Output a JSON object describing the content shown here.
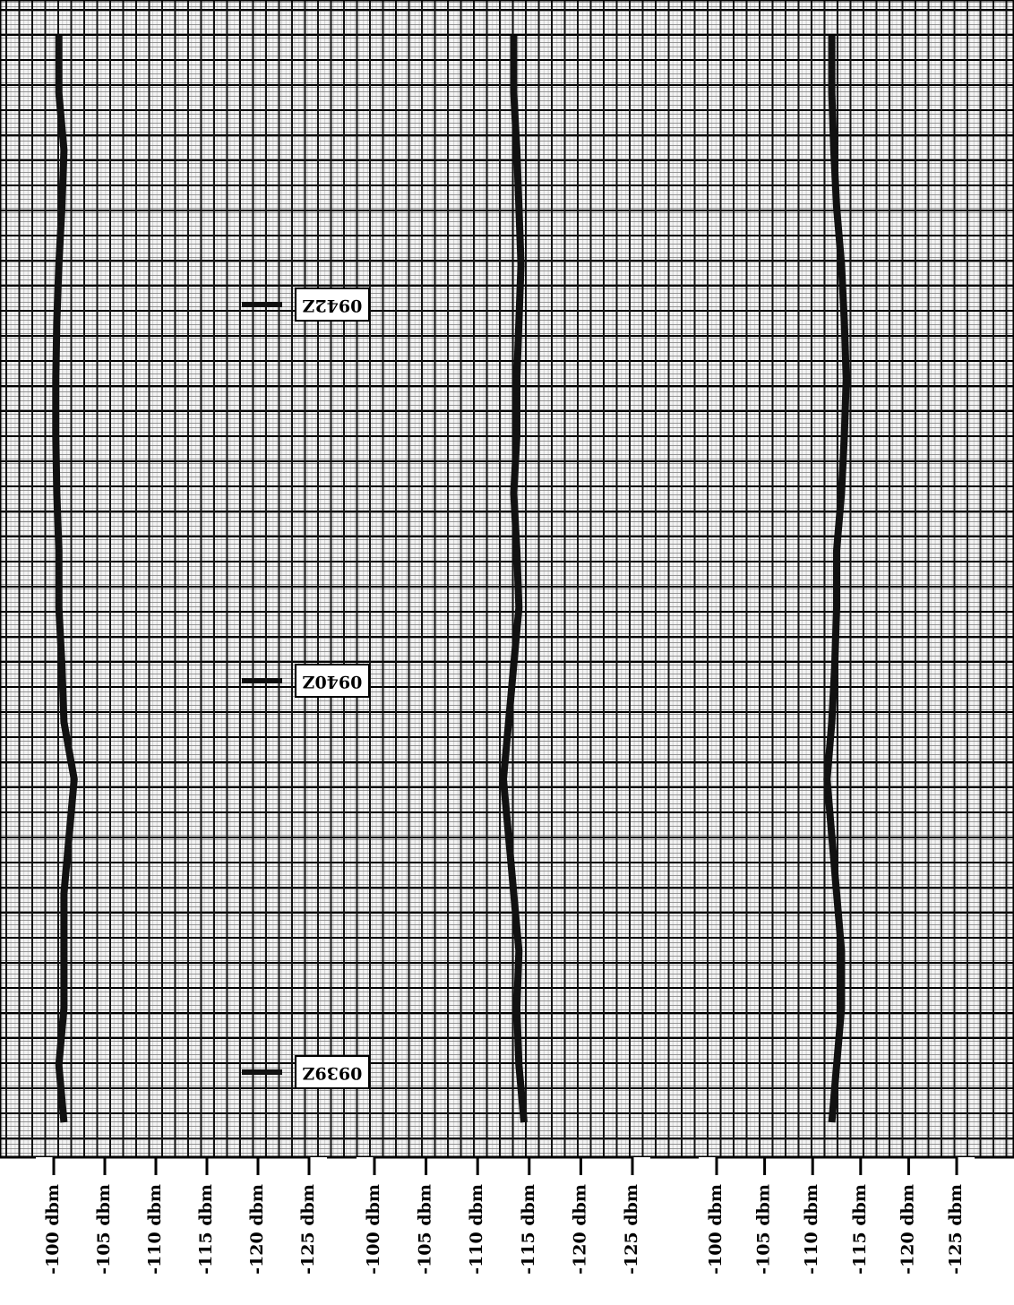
{
  "chart_data": [
    {
      "type": "line",
      "categories": [
        null,
        null,
        null,
        null,
        null,
        null,
        null,
        null,
        null,
        null,
        null,
        null,
        null,
        null,
        null,
        null,
        null,
        null,
        null,
        null
      ],
      "series": [
        {
          "color": "#111111",
          "values": [
            -100.5,
            -100.5,
            -101,
            -100.8,
            -100.5,
            -100.3,
            -100.2,
            -100.2,
            -100.3,
            -100.5,
            -100.5,
            -100.8,
            -101,
            -102,
            -101.5,
            -101,
            -101,
            -101,
            -100.5,
            -101
          ]
        }
      ],
      "xlim": [
        -100,
        -125
      ],
      "xticks": [
        {
          "value": -100,
          "label": "-100 dbm"
        },
        {
          "value": -105,
          "label": "-105 dbm"
        },
        {
          "value": -110,
          "label": "-110 dbm"
        },
        {
          "value": -115,
          "label": "-115 dbm"
        },
        {
          "value": -120,
          "label": "-120 dbm"
        },
        {
          "value": -125,
          "label": "-125 dbm"
        }
      ],
      "annotations": [
        "0942Z",
        "0940Z",
        "0939Z"
      ]
    },
    {
      "type": "line",
      "categories": [
        null,
        null,
        null,
        null,
        null,
        null,
        null,
        null,
        null,
        null,
        null,
        null,
        null,
        null,
        null,
        null,
        null,
        null,
        null,
        null
      ],
      "series": [
        {
          "color": "#111111",
          "values": [
            -113.5,
            -113.5,
            -113.8,
            -114,
            -114.2,
            -114,
            -113.8,
            -113.8,
            -113.5,
            -113.8,
            -114,
            -113.5,
            -113,
            -112.5,
            -113,
            -113.5,
            -114,
            -113.8,
            -114,
            -114.5
          ]
        }
      ],
      "xlim": [
        -100,
        -125
      ],
      "xticks": [
        {
          "value": -100,
          "label": "-100 dbm"
        },
        {
          "value": -105,
          "label": "-105 dbm"
        },
        {
          "value": -110,
          "label": "-110 dbm"
        },
        {
          "value": -115,
          "label": "-115 dbm"
        },
        {
          "value": -120,
          "label": "-120 dbm"
        },
        {
          "value": -125,
          "label": "-125 dbm"
        }
      ]
    },
    {
      "type": "line",
      "categories": [
        null,
        null,
        null,
        null,
        null,
        null,
        null,
        null,
        null,
        null,
        null,
        null,
        null,
        null,
        null,
        null,
        null,
        null,
        null,
        null
      ],
      "series": [
        {
          "color": "#111111",
          "values": [
            -112,
            -112,
            -112.2,
            -112.5,
            -113,
            -113.3,
            -113.5,
            -113.3,
            -113,
            -112.5,
            -112.5,
            -112.3,
            -112,
            -111.5,
            -112,
            -112.5,
            -113,
            -113,
            -112.5,
            -112
          ]
        }
      ],
      "xlim": [
        -100,
        -125
      ],
      "xticks": [
        {
          "value": -100,
          "label": "-100 dbm"
        },
        {
          "value": -105,
          "label": "-105 dbm"
        },
        {
          "value": -110,
          "label": "-110 dbm"
        },
        {
          "value": -115,
          "label": "-115 dbm"
        },
        {
          "value": -120,
          "label": "-120 dbm"
        },
        {
          "value": -125,
          "label": "-125 dbm"
        }
      ]
    }
  ]
}
